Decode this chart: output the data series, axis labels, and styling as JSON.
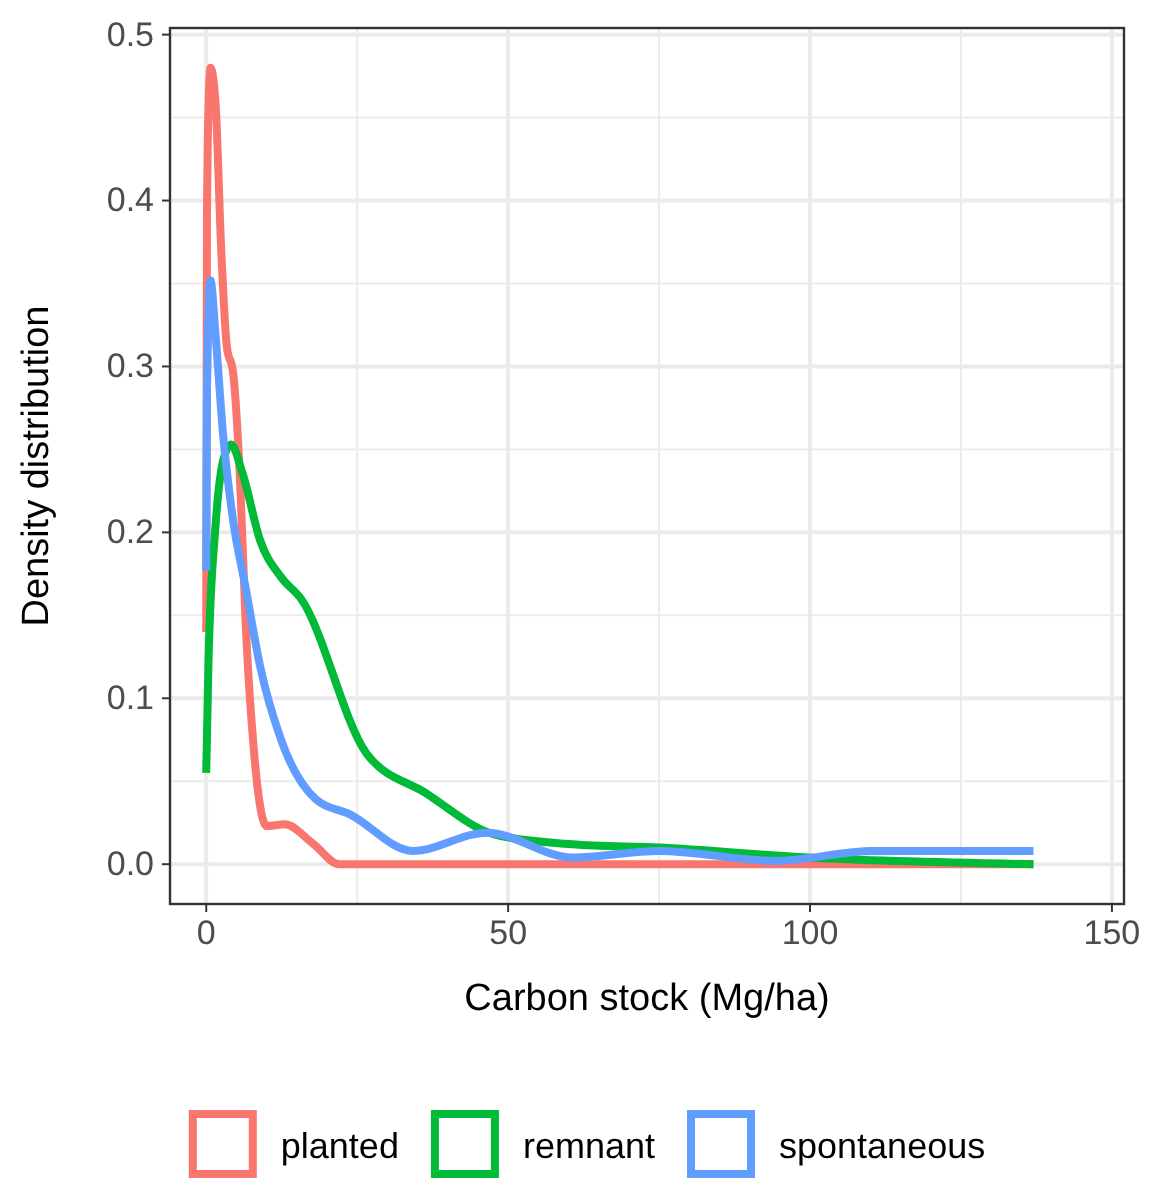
{
  "chart_data": {
    "type": "line",
    "xlabel": "Carbon stock (Mg/ha)",
    "ylabel": "Density distribution",
    "xlim": [
      -6,
      152
    ],
    "xticks": [
      0,
      50,
      100,
      150
    ],
    "ylim": [
      -0.024,
      0.504
    ],
    "yticks": [
      {
        "value": 0,
        "label": "0.0"
      },
      {
        "value": 0.1,
        "label": "0.1"
      },
      {
        "value": 0.2,
        "label": "0.2"
      },
      {
        "value": 0.3,
        "label": "0.3"
      },
      {
        "value": 0.4,
        "label": "0.4"
      },
      {
        "value": 0.5,
        "label": "0.5"
      }
    ],
    "grid": true,
    "legend": "bottom",
    "line_style": "solid",
    "marker": "none",
    "series": [
      {
        "name": "planted",
        "color": "#f8766d",
        "x": [
          0,
          0.12,
          0.4,
          0.7,
          1.52,
          2.51,
          3.41,
          4.46,
          5.64,
          6.51,
          7.93,
          10,
          13,
          17.8,
          22,
          137
        ],
        "values": [
          0.14,
          0.388,
          0.46,
          0.48,
          0.46,
          0.368,
          0.312,
          0.296,
          0.228,
          0.147,
          0.067,
          0.023,
          0.024,
          0.012,
          0,
          0
        ]
      },
      {
        "name": "remnant",
        "color": "#00ba38",
        "x": [
          0,
          0.38,
          1.52,
          2.79,
          4.09,
          6.06,
          8.94,
          12.4,
          15.7,
          26.5,
          36.3,
          47.7,
          60.6,
          75,
          99.6,
          137
        ],
        "values": [
          0.055,
          0.123,
          0.203,
          0.243,
          0.253,
          0.235,
          0.195,
          0.173,
          0.16,
          0.067,
          0.043,
          0.018,
          0.012,
          0.01,
          0.004,
          0
        ]
      },
      {
        "name": "spontaneous",
        "color": "#619cff",
        "x": [
          0,
          0.12,
          0.7,
          1.52,
          2.79,
          4.46,
          6.51,
          8.94,
          12.4,
          18.2,
          23.8,
          34.2,
          46.5,
          60.6,
          75,
          94.3,
          110.4,
          137
        ],
        "values": [
          0.177,
          0.284,
          0.352,
          0.32,
          0.259,
          0.207,
          0.167,
          0.119,
          0.075,
          0.039,
          0.03,
          0.008,
          0.019,
          0.004,
          0.008,
          0.002,
          0.008,
          0.008
        ]
      }
    ]
  }
}
